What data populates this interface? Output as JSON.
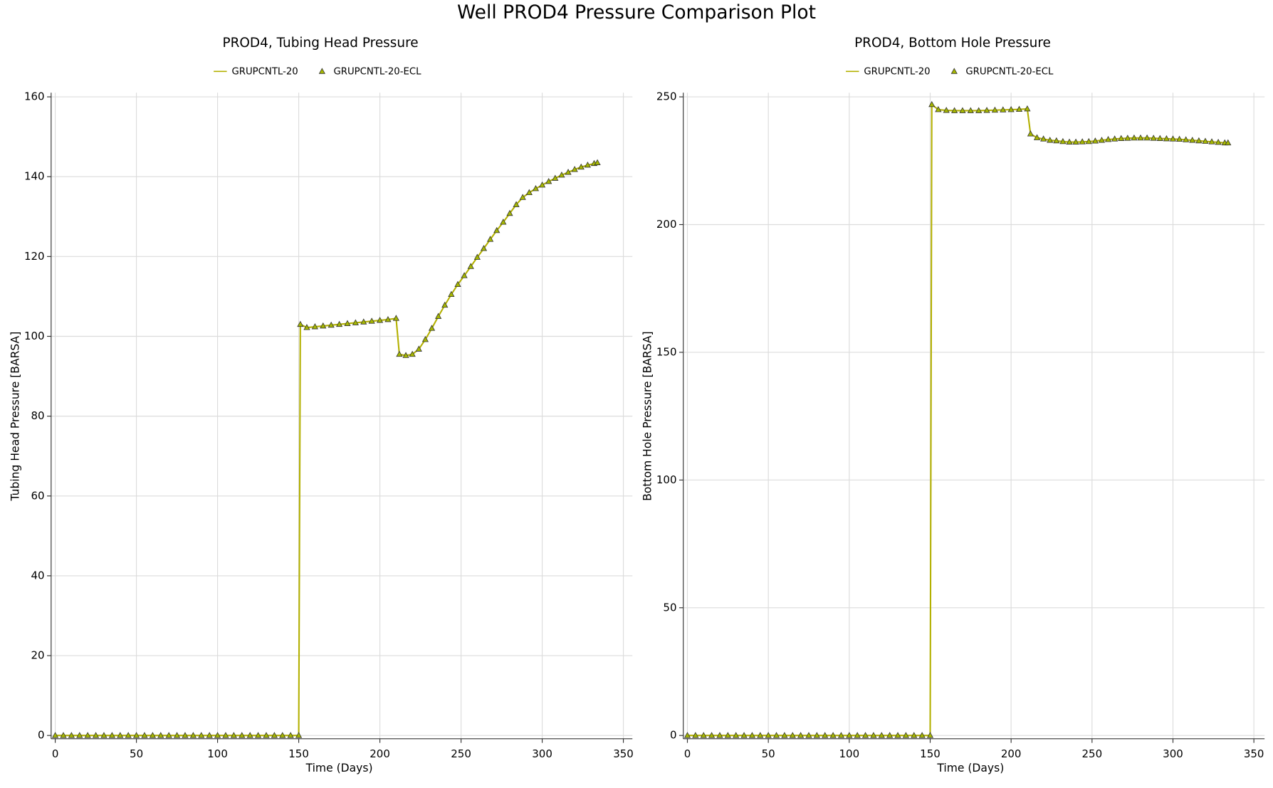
{
  "title": "Well PROD4 Pressure Comparison Plot",
  "chart_data": [
    {
      "type": "line",
      "title": "PROD4, Tubing Head Pressure",
      "xlabel": "Time (Days)",
      "ylabel": "Tubing Head Pressure [BARSA]",
      "xlim": [
        0,
        350
      ],
      "xticks": [
        0,
        50,
        100,
        150,
        200,
        250,
        300,
        350
      ],
      "ylim": [
        0,
        160
      ],
      "yticks": [
        0,
        20,
        40,
        60,
        80,
        100,
        120,
        140,
        160
      ],
      "grid": true,
      "x": [
        0,
        5,
        10,
        15,
        20,
        25,
        30,
        35,
        40,
        45,
        50,
        55,
        60,
        65,
        70,
        75,
        80,
        85,
        90,
        95,
        100,
        105,
        110,
        115,
        120,
        125,
        130,
        135,
        140,
        145,
        150,
        151,
        155,
        160,
        165,
        170,
        175,
        180,
        185,
        190,
        195,
        200,
        205,
        210,
        212,
        216,
        220,
        224,
        228,
        232,
        236,
        240,
        244,
        248,
        252,
        256,
        260,
        264,
        268,
        272,
        276,
        280,
        284,
        288,
        292,
        296,
        300,
        304,
        308,
        312,
        316,
        320,
        324,
        328,
        332,
        334
      ],
      "series": [
        {
          "name": "GRUPCNTL-20",
          "style": "line",
          "color": "#b3b000",
          "values": [
            0,
            0,
            0,
            0,
            0,
            0,
            0,
            0,
            0,
            0,
            0,
            0,
            0,
            0,
            0,
            0,
            0,
            0,
            0,
            0,
            0,
            0,
            0,
            0,
            0,
            0,
            0,
            0,
            0,
            0,
            0,
            103,
            102.2,
            102.4,
            102.6,
            102.8,
            103.0,
            103.2,
            103.4,
            103.6,
            103.8,
            104.0,
            104.2,
            104.5,
            95.5,
            95.2,
            95.5,
            96.8,
            99.2,
            102,
            105,
            107.8,
            110.5,
            113,
            115.2,
            117.5,
            119.8,
            122,
            124.3,
            126.5,
            128.6,
            130.8,
            133,
            134.8,
            136,
            137,
            137.9,
            138.8,
            139.6,
            140.4,
            141.1,
            141.8,
            142.4,
            142.9,
            143.3,
            143.5
          ]
        },
        {
          "name": "GRUPCNTL-20-ECL",
          "style": "markers",
          "color": "#a6b800",
          "values": [
            0,
            0,
            0,
            0,
            0,
            0,
            0,
            0,
            0,
            0,
            0,
            0,
            0,
            0,
            0,
            0,
            0,
            0,
            0,
            0,
            0,
            0,
            0,
            0,
            0,
            0,
            0,
            0,
            0,
            0,
            0,
            103,
            102.2,
            102.4,
            102.6,
            102.8,
            103.0,
            103.2,
            103.4,
            103.6,
            103.8,
            104.0,
            104.2,
            104.5,
            95.5,
            95.2,
            95.5,
            96.8,
            99.2,
            102,
            105,
            107.8,
            110.5,
            113,
            115.2,
            117.5,
            119.8,
            122,
            124.3,
            126.5,
            128.6,
            130.8,
            133,
            134.8,
            136,
            137,
            137.9,
            138.8,
            139.6,
            140.4,
            141.1,
            141.8,
            142.4,
            142.9,
            143.3,
            143.5
          ]
        }
      ]
    },
    {
      "type": "line",
      "title": "PROD4, Bottom Hole Pressure",
      "xlabel": "Time (Days)",
      "ylabel": "Bottom Hole Pressure [BARSA]",
      "xlim": [
        0,
        350
      ],
      "xticks": [
        0,
        50,
        100,
        150,
        200,
        250,
        300,
        350
      ],
      "ylim": [
        0,
        250
      ],
      "yticks": [
        0,
        50,
        100,
        150,
        200,
        250
      ],
      "grid": true,
      "x": [
        0,
        5,
        10,
        15,
        20,
        25,
        30,
        35,
        40,
        45,
        50,
        55,
        60,
        65,
        70,
        75,
        80,
        85,
        90,
        95,
        100,
        105,
        110,
        115,
        120,
        125,
        130,
        135,
        140,
        145,
        150,
        151,
        155,
        160,
        165,
        170,
        175,
        180,
        185,
        190,
        195,
        200,
        205,
        210,
        212,
        216,
        220,
        224,
        228,
        232,
        236,
        240,
        244,
        248,
        252,
        256,
        260,
        264,
        268,
        272,
        276,
        280,
        284,
        288,
        292,
        296,
        300,
        304,
        308,
        312,
        316,
        320,
        324,
        328,
        332,
        334
      ],
      "series": [
        {
          "name": "GRUPCNTL-20",
          "style": "line",
          "color": "#b3b000",
          "values": [
            0,
            0,
            0,
            0,
            0,
            0,
            0,
            0,
            0,
            0,
            0,
            0,
            0,
            0,
            0,
            0,
            0,
            0,
            0,
            0,
            0,
            0,
            0,
            0,
            0,
            0,
            0,
            0,
            0,
            0,
            0,
            247,
            245,
            244.7,
            244.6,
            244.6,
            244.6,
            244.6,
            244.7,
            244.8,
            244.9,
            245,
            245.1,
            245.3,
            235.5,
            234,
            233.5,
            233,
            232.8,
            232.5,
            232.3,
            232.3,
            232.4,
            232.5,
            232.7,
            233,
            233.3,
            233.5,
            233.7,
            233.8,
            233.9,
            233.9,
            233.9,
            233.8,
            233.7,
            233.6,
            233.5,
            233.4,
            233.2,
            233,
            232.8,
            232.6,
            232.4,
            232.2,
            232,
            232
          ]
        },
        {
          "name": "GRUPCNTL-20-ECL",
          "style": "markers",
          "color": "#a6b800",
          "values": [
            0,
            0,
            0,
            0,
            0,
            0,
            0,
            0,
            0,
            0,
            0,
            0,
            0,
            0,
            0,
            0,
            0,
            0,
            0,
            0,
            0,
            0,
            0,
            0,
            0,
            0,
            0,
            0,
            0,
            0,
            0,
            247,
            245,
            244.7,
            244.6,
            244.6,
            244.6,
            244.6,
            244.7,
            244.8,
            244.9,
            245,
            245.1,
            245.3,
            235.5,
            234,
            233.5,
            233,
            232.8,
            232.5,
            232.3,
            232.3,
            232.4,
            232.5,
            232.7,
            233,
            233.3,
            233.5,
            233.7,
            233.8,
            233.9,
            233.9,
            233.9,
            233.8,
            233.7,
            233.6,
            233.5,
            233.4,
            233.2,
            233,
            232.8,
            232.6,
            232.4,
            232.2,
            232,
            232
          ]
        }
      ]
    }
  ]
}
